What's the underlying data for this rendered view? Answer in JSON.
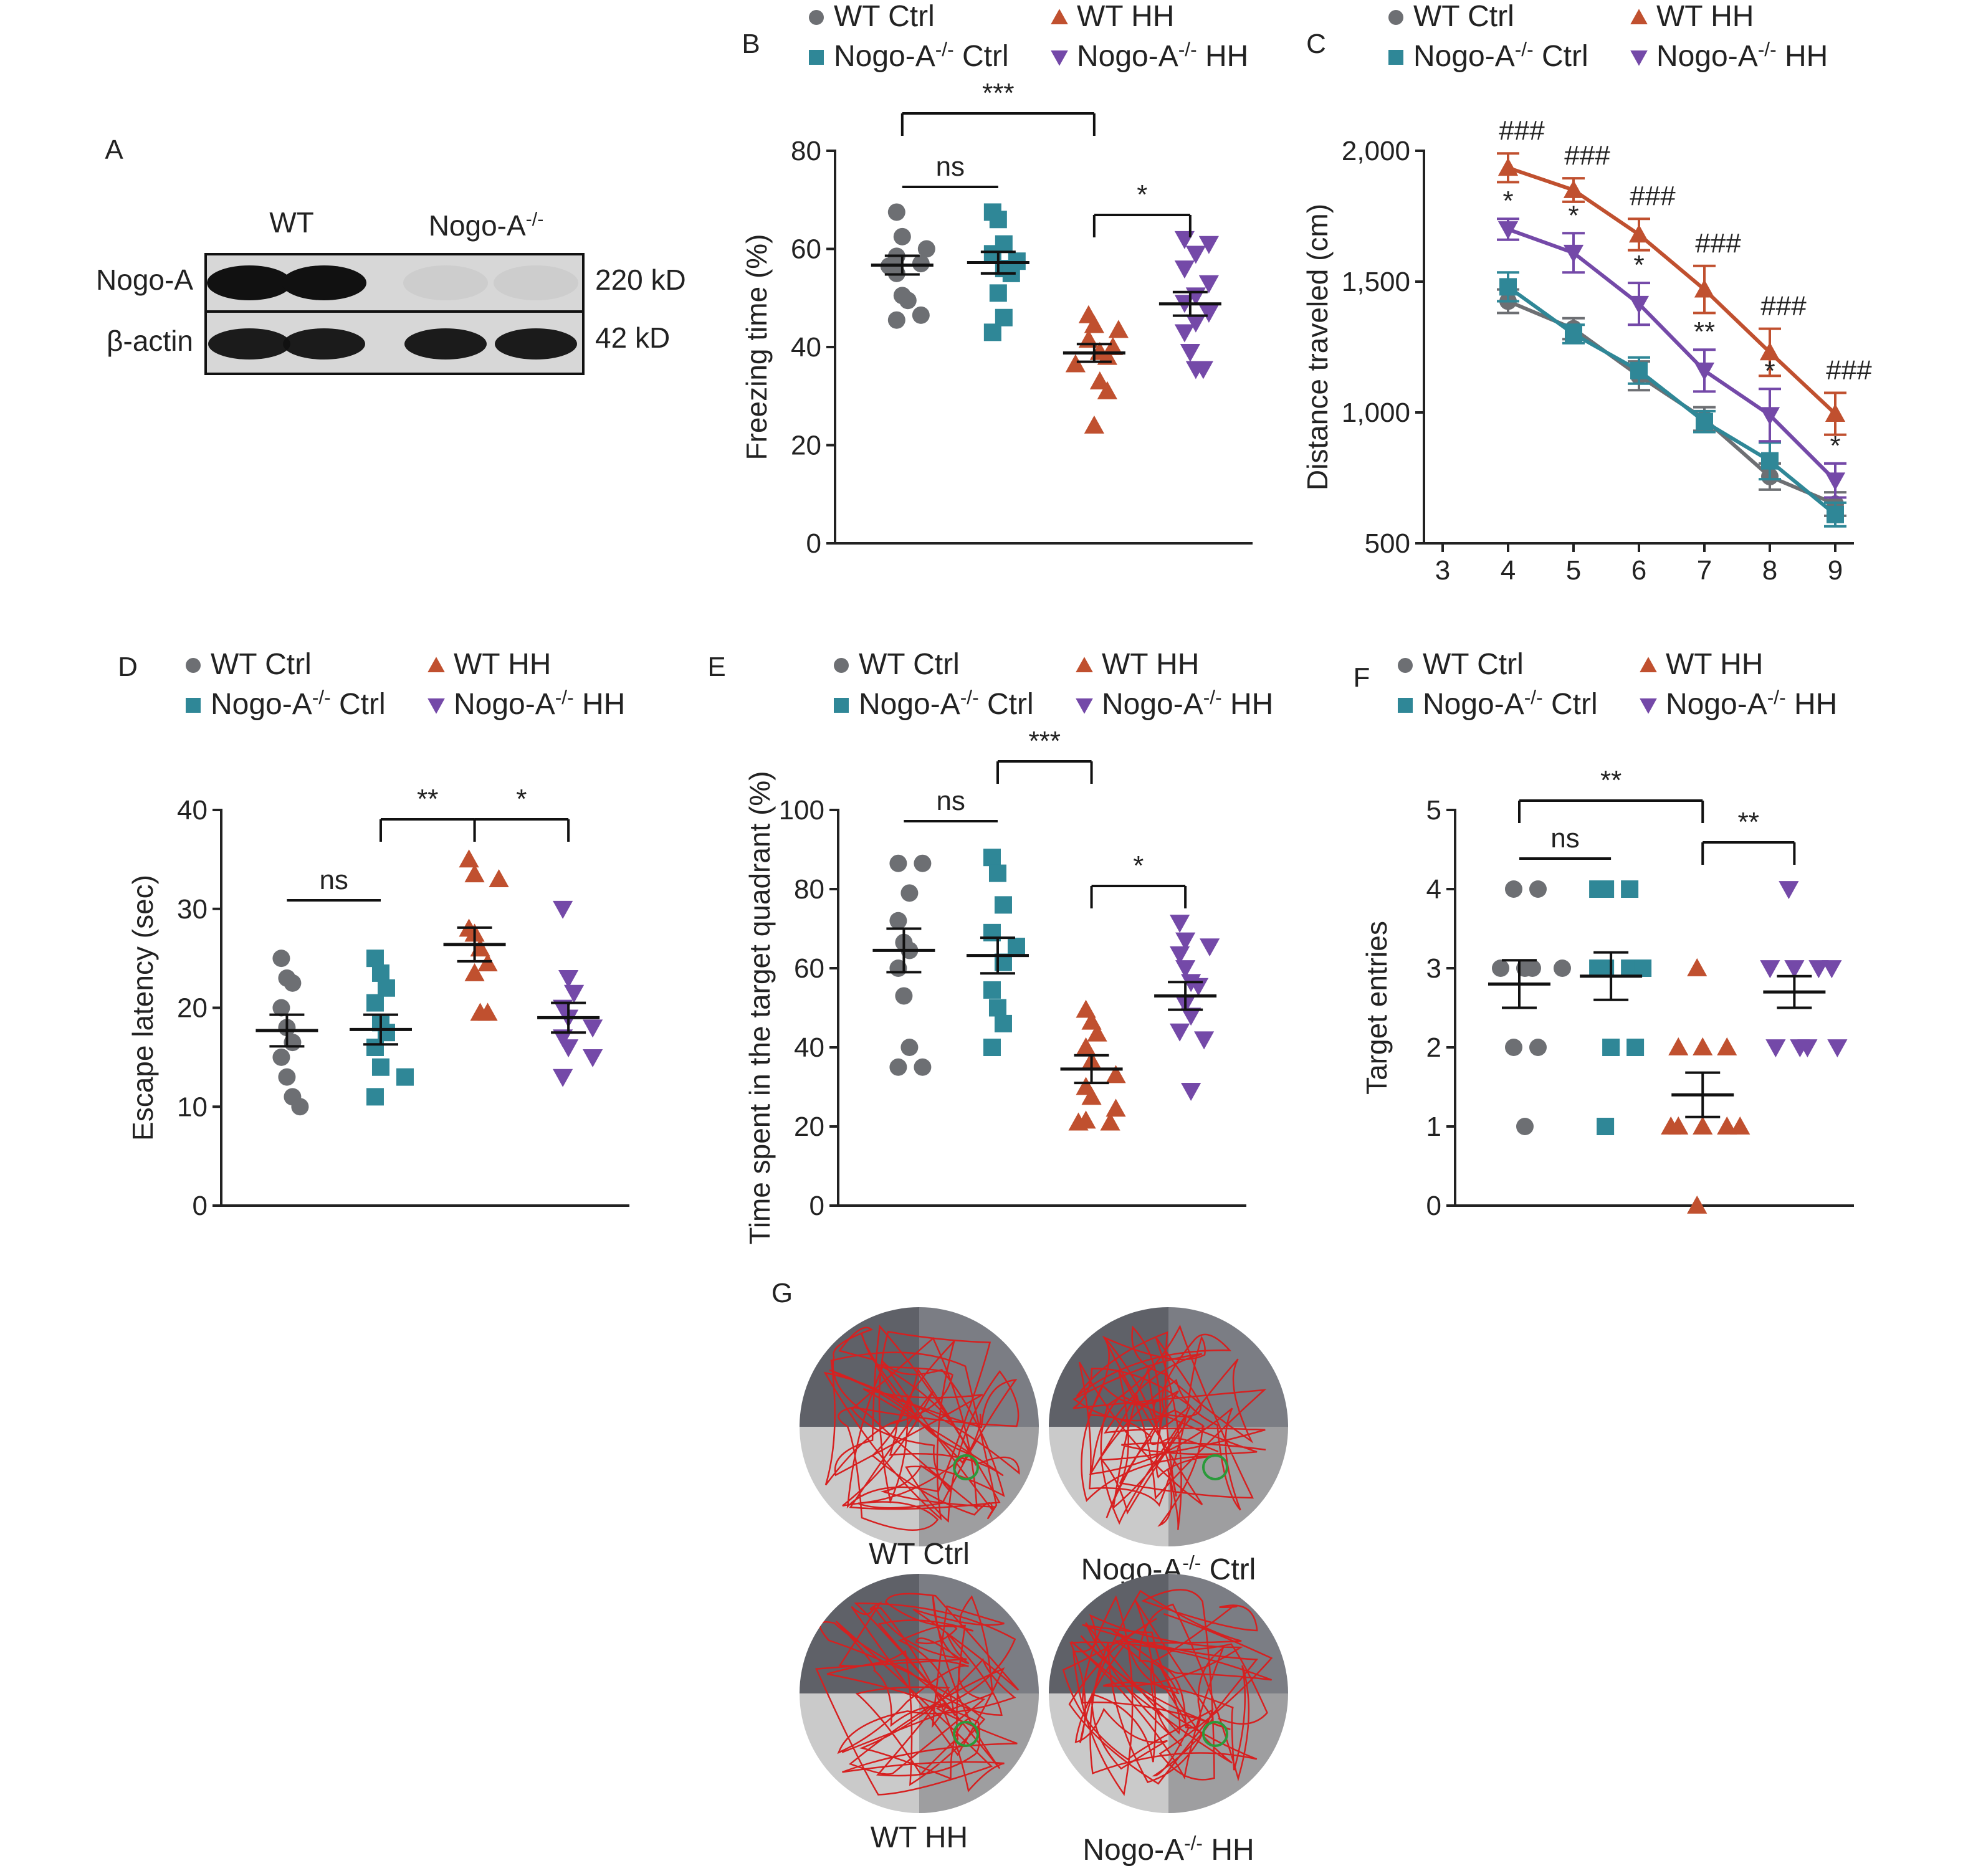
{
  "colors": {
    "wt_ctrl": "#6d6f73",
    "ko_ctrl": "#2f8797",
    "wt_hh": "#c0502f",
    "ko_hh": "#7449a8",
    "axis": "#222222",
    "track": "#d62020",
    "platform": "#2a9a3a"
  },
  "legend_labels": [
    "WT Ctrl",
    "WT HH",
    "Nogo-A-/- Ctrl",
    "Nogo-A-/- HH"
  ],
  "legend_sup": "-/-",
  "panel_labels": {
    "a": "A",
    "b": "B",
    "c": "C",
    "d": "D",
    "e": "E",
    "f": "F",
    "g": "G"
  },
  "western": {
    "col_labels": [
      "WT",
      "Nogo-A-/-"
    ],
    "row_labels": [
      "Nogo-A",
      "β-actin"
    ],
    "sizes": [
      "220 kD",
      "42 kD"
    ],
    "band_intensity": {
      "nogo_a": [
        1,
        1,
        0.04,
        0.03
      ],
      "beta_actin": [
        1,
        1,
        1,
        1
      ]
    }
  },
  "chart_data": [
    {
      "id": "B",
      "type": "scatter",
      "ylabel": "Freezing time (%)",
      "ylim": [
        0,
        80
      ],
      "yticks": [
        0,
        20,
        40,
        60,
        80
      ],
      "groups": [
        {
          "name": "WT Ctrl",
          "marker": "circle",
          "mean": 56.7,
          "sem": 1.9,
          "points": [
            67.5,
            62.5,
            60,
            58.5,
            57,
            56.5,
            55,
            50.5,
            49.5,
            45.5,
            46.5
          ]
        },
        {
          "name": "Nogo-A-/- Ctrl",
          "marker": "square",
          "mean": 57.2,
          "sem": 2.2,
          "points": [
            67.5,
            66,
            61,
            59,
            57.5,
            56,
            55,
            51,
            46,
            43
          ]
        },
        {
          "name": "WT HH",
          "marker": "triangle-up",
          "mean": 38.8,
          "sem": 1.8,
          "points": [
            46.5,
            44.5,
            43.5,
            41.5,
            40,
            39,
            38,
            36.5,
            33,
            31,
            24
          ]
        },
        {
          "name": "Nogo-A-/- HH",
          "marker": "triangle-down",
          "mean": 48.8,
          "sem": 2.4,
          "points": [
            62,
            61,
            59,
            56,
            53,
            50.5,
            49,
            47,
            45,
            43,
            39,
            35.5,
            35.5
          ]
        }
      ],
      "annotations": [
        {
          "text": "ns",
          "from": 0,
          "to": 1
        },
        {
          "text": "***",
          "from": 0,
          "to": 2
        },
        {
          "text": "*",
          "from": 2,
          "to": 3
        }
      ]
    },
    {
      "id": "C",
      "type": "line",
      "ylabel": "Distance traveled (cm)",
      "ylim": [
        500,
        2000
      ],
      "yticks": [
        500,
        1000,
        1500,
        2000
      ],
      "ytick_labels": [
        "500",
        "1,000",
        "1,500",
        "2,000"
      ],
      "xlim": [
        3,
        9
      ],
      "xticks": [
        3,
        4,
        5,
        6,
        7,
        8,
        9
      ],
      "x": [
        4,
        5,
        6,
        7,
        8,
        9
      ],
      "series": [
        {
          "name": "WT Ctrl",
          "marker": "circle",
          "values": [
            1425,
            1320,
            1140,
            975,
            755,
            650
          ],
          "err": [
            45,
            40,
            55,
            45,
            50,
            45
          ]
        },
        {
          "name": "Nogo-A-/- Ctrl",
          "marker": "square",
          "values": [
            1480,
            1300,
            1160,
            965,
            815,
            610
          ],
          "err": [
            55,
            35,
            50,
            40,
            70,
            45
          ]
        },
        {
          "name": "Nogo-A-/- HH",
          "marker": "triangle-down",
          "values": [
            1700,
            1610,
            1415,
            1160,
            990,
            740
          ],
          "err": [
            40,
            75,
            80,
            80,
            100,
            65
          ]
        },
        {
          "name": "WT HH",
          "marker": "triangle-up",
          "values": [
            1935,
            1850,
            1680,
            1470,
            1230,
            995
          ],
          "err": [
            55,
            45,
            60,
            90,
            90,
            80
          ]
        }
      ],
      "hash_marks": [
        "###",
        "###",
        "###",
        "###",
        "###",
        "###"
      ],
      "star_marks": [
        "*",
        "*",
        "*",
        "**",
        "*",
        "*"
      ]
    },
    {
      "id": "D",
      "type": "scatter",
      "ylabel": "Escape latency (sec)",
      "ylim": [
        0,
        40
      ],
      "yticks": [
        0,
        10,
        20,
        30,
        40
      ],
      "groups": [
        {
          "name": "WT Ctrl",
          "marker": "circle",
          "mean": 17.7,
          "sem": 1.6,
          "points": [
            25,
            23,
            22.5,
            20,
            18,
            16.5,
            15,
            13,
            11,
            10
          ]
        },
        {
          "name": "Nogo-A-/- Ctrl",
          "marker": "square",
          "mean": 17.8,
          "sem": 1.5,
          "points": [
            25,
            23.5,
            22,
            20.5,
            18.5,
            17.5,
            16,
            14,
            13,
            11
          ]
        },
        {
          "name": "WT HH",
          "marker": "triangle-up",
          "mean": 26.4,
          "sem": 1.7,
          "points": [
            35,
            33.5,
            33,
            28,
            27.5,
            26,
            24.5,
            23.5,
            19.5,
            19.5
          ]
        },
        {
          "name": "Nogo-A-/- HH",
          "marker": "triangle-down",
          "mean": 19,
          "sem": 1.5,
          "points": [
            30,
            23,
            21.5,
            20,
            19,
            18,
            17,
            16,
            15,
            13
          ]
        }
      ],
      "annotations": [
        {
          "text": "ns",
          "from": 0,
          "to": 1
        },
        {
          "text": "**",
          "from": 1,
          "to": 2
        },
        {
          "text": "*",
          "from": 2,
          "to": 3
        }
      ]
    },
    {
      "id": "E",
      "type": "scatter",
      "ylabel": "Time spent in the target quadrant (%)",
      "ylim": [
        0,
        100
      ],
      "yticks": [
        0,
        20,
        40,
        60,
        80,
        100
      ],
      "groups": [
        {
          "name": "WT Ctrl",
          "marker": "circle",
          "mean": 64.5,
          "sem": 5.5,
          "points": [
            86.5,
            86.5,
            79,
            72,
            66.5,
            64.5,
            60,
            53,
            40,
            35,
            35
          ]
        },
        {
          "name": "Nogo-A-/- Ctrl",
          "marker": "square",
          "mean": 63.2,
          "sem": 4.5,
          "points": [
            88,
            84,
            76,
            69,
            65.5,
            61.5,
            54.5,
            50,
            46,
            40
          ]
        },
        {
          "name": "WT HH",
          "marker": "triangle-up",
          "mean": 34.5,
          "sem": 3.5,
          "points": [
            49.5,
            46.5,
            43.5,
            40,
            36.5,
            33,
            30,
            27.5,
            24.5,
            21.5,
            21,
            21
          ]
        },
        {
          "name": "Nogo-A-/- HH",
          "marker": "triangle-down",
          "mean": 53,
          "sem": 3.5,
          "points": [
            71.5,
            67,
            65.5,
            63.5,
            60,
            56.5,
            55.5,
            51,
            48,
            44,
            42,
            29
          ]
        }
      ],
      "annotations": [
        {
          "text": "ns",
          "from": 0,
          "to": 1
        },
        {
          "text": "***",
          "from": 1,
          "to": 2
        },
        {
          "text": "*",
          "from": 2,
          "to": 3
        }
      ]
    },
    {
      "id": "F",
      "type": "scatter",
      "ylabel": "Target entries",
      "ylim": [
        0,
        5
      ],
      "yticks": [
        0,
        1,
        2,
        3,
        4,
        5
      ],
      "groups": [
        {
          "name": "WT Ctrl",
          "marker": "circle",
          "mean": 2.8,
          "sem": 0.3,
          "points": [
            4,
            4,
            3,
            3,
            3,
            3,
            2,
            2,
            1
          ]
        },
        {
          "name": "Nogo-A-/- Ctrl",
          "marker": "square",
          "mean": 2.9,
          "sem": 0.3,
          "points": [
            4,
            4,
            4,
            3,
            3,
            3,
            3,
            2,
            2,
            1
          ]
        },
        {
          "name": "WT HH",
          "marker": "triangle-up",
          "mean": 1.4,
          "sem": 0.28,
          "points": [
            3,
            2,
            2,
            2,
            1,
            1,
            1,
            1,
            1,
            0
          ]
        },
        {
          "name": "Nogo-A-/- HH",
          "marker": "triangle-down",
          "mean": 2.7,
          "sem": 0.2,
          "points": [
            4,
            3,
            3,
            3,
            3,
            2,
            2,
            2,
            2
          ]
        }
      ],
      "annotations": [
        {
          "text": "ns",
          "from": 0,
          "to": 1
        },
        {
          "text": "**",
          "from": 0,
          "to": 2
        },
        {
          "text": "**",
          "from": 2,
          "to": 3
        }
      ]
    }
  ],
  "maze_captions": [
    "WT Ctrl",
    "Nogo-A-/- Ctrl",
    "WT HH",
    "Nogo-A-/- HH"
  ]
}
